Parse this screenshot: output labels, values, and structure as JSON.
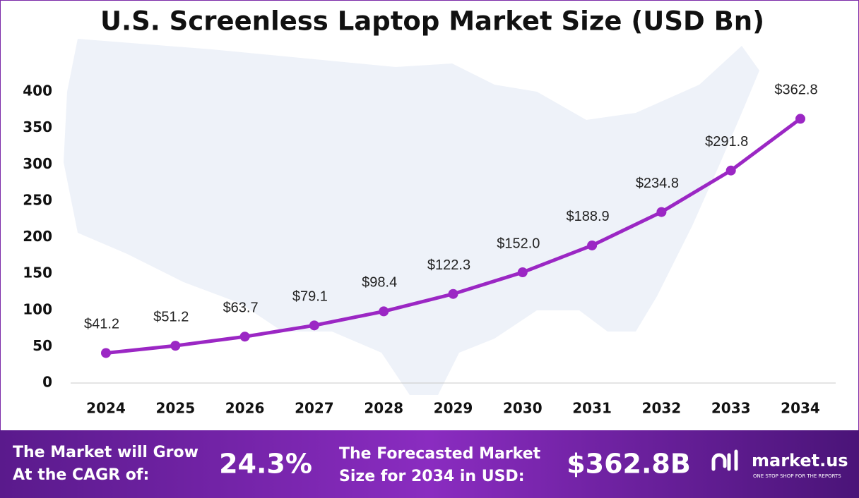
{
  "chart_data": {
    "type": "line",
    "title": "U.S. Screenless Laptop Market Size (USD Bn)",
    "categories": [
      "2024",
      "2025",
      "2026",
      "2027",
      "2028",
      "2029",
      "2030",
      "2031",
      "2032",
      "2033",
      "2034"
    ],
    "values": [
      41.2,
      51.2,
      63.7,
      79.1,
      98.4,
      122.3,
      152.0,
      188.9,
      234.8,
      291.8,
      362.8
    ],
    "value_labels": [
      "$41.2",
      "$51.2",
      "$63.7",
      "$79.1",
      "$98.4",
      "$122.3",
      "$152.0",
      "$188.9",
      "$234.8",
      "$291.8",
      "$362.8"
    ],
    "color": "#9b27c4",
    "ylim": [
      0,
      400
    ],
    "yticks": [
      0,
      50,
      100,
      150,
      200,
      250,
      300,
      350,
      400
    ],
    "grid": false
  },
  "footer": {
    "cagr_label": [
      "The Market will Grow",
      "At the CAGR of:"
    ],
    "cagr_value": "24.3%",
    "forecast_label": [
      "The Forecasted Market",
      "Size for 2034 in USD:"
    ],
    "forecast_value": "$362.8B",
    "logo": "market.us",
    "tagline": "ONE STOP SHOP FOR THE REPORTS"
  }
}
